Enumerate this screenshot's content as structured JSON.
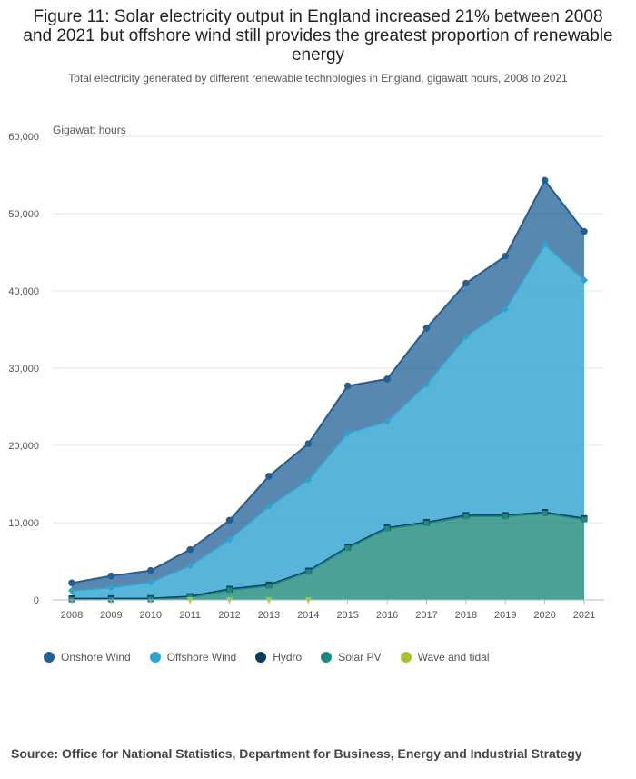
{
  "chart_data": {
    "type": "area",
    "title": "Figure 11: Solar electricity output in England increased 21% between 2008 and 2021 but offshore wind still provides the greatest proportion of renewable energy",
    "subtitle": "Total electricity generated by different renewable technologies in England, gigawatt hours, 2008 to 2021",
    "ylabel": "Gigawatt hours",
    "xlabel": "",
    "ylim": [
      0,
      60000
    ],
    "yticks": [
      0,
      10000,
      20000,
      30000,
      40000,
      50000,
      60000
    ],
    "ytick_labels": [
      "0",
      "10,000",
      "20,000",
      "30,000",
      "40,000",
      "50,000",
      "60,000"
    ],
    "stacked": true,
    "categories": [
      "2008",
      "2009",
      "2010",
      "2011",
      "2012",
      "2013",
      "2014",
      "2015",
      "2016",
      "2017",
      "2018",
      "2019",
      "2020",
      "2021"
    ],
    "series": [
      {
        "name": "Wave and tidal",
        "color": "#a8bf2f",
        "values": [
          null,
          null,
          null,
          10,
          10,
          10,
          10,
          null,
          null,
          null,
          null,
          null,
          null,
          null
        ]
      },
      {
        "name": "Solar PV",
        "color": "#1e8a7c",
        "values": [
          20,
          30,
          50,
          300,
          1250,
          1800,
          3600,
          6700,
          9200,
          9900,
          10800,
          10800,
          11200,
          10400
        ]
      },
      {
        "name": "Hydro",
        "color": "#0b3b5b",
        "values": [
          150,
          150,
          150,
          150,
          150,
          150,
          150,
          150,
          150,
          150,
          150,
          150,
          150,
          150
        ]
      },
      {
        "name": "Offshore Wind",
        "color": "#2ea3d0",
        "values": [
          1030,
          1420,
          2100,
          3950,
          6400,
          10150,
          11750,
          14750,
          13750,
          17850,
          23150,
          26650,
          34650,
          30850
        ]
      },
      {
        "name": "Onshore Wind",
        "color": "#206095",
        "values": [
          1000,
          1500,
          1500,
          2100,
          2500,
          3900,
          4700,
          6100,
          5500,
          7300,
          6900,
          6900,
          8300,
          6300
        ]
      }
    ],
    "legend": {
      "placement": "bottom-left",
      "items": [
        {
          "name": "Onshore Wind",
          "color": "#206095"
        },
        {
          "name": "Offshore Wind",
          "color": "#2ea3d0"
        },
        {
          "name": "Hydro",
          "color": "#0b3b5b"
        },
        {
          "name": "Solar PV",
          "color": "#1e8a7c"
        },
        {
          "name": "Wave and tidal",
          "color": "#a8bf2f"
        }
      ]
    },
    "grid": true
  },
  "source": "Source: Office for National Statistics, Department for Business, Energy and Industrial Strategy"
}
